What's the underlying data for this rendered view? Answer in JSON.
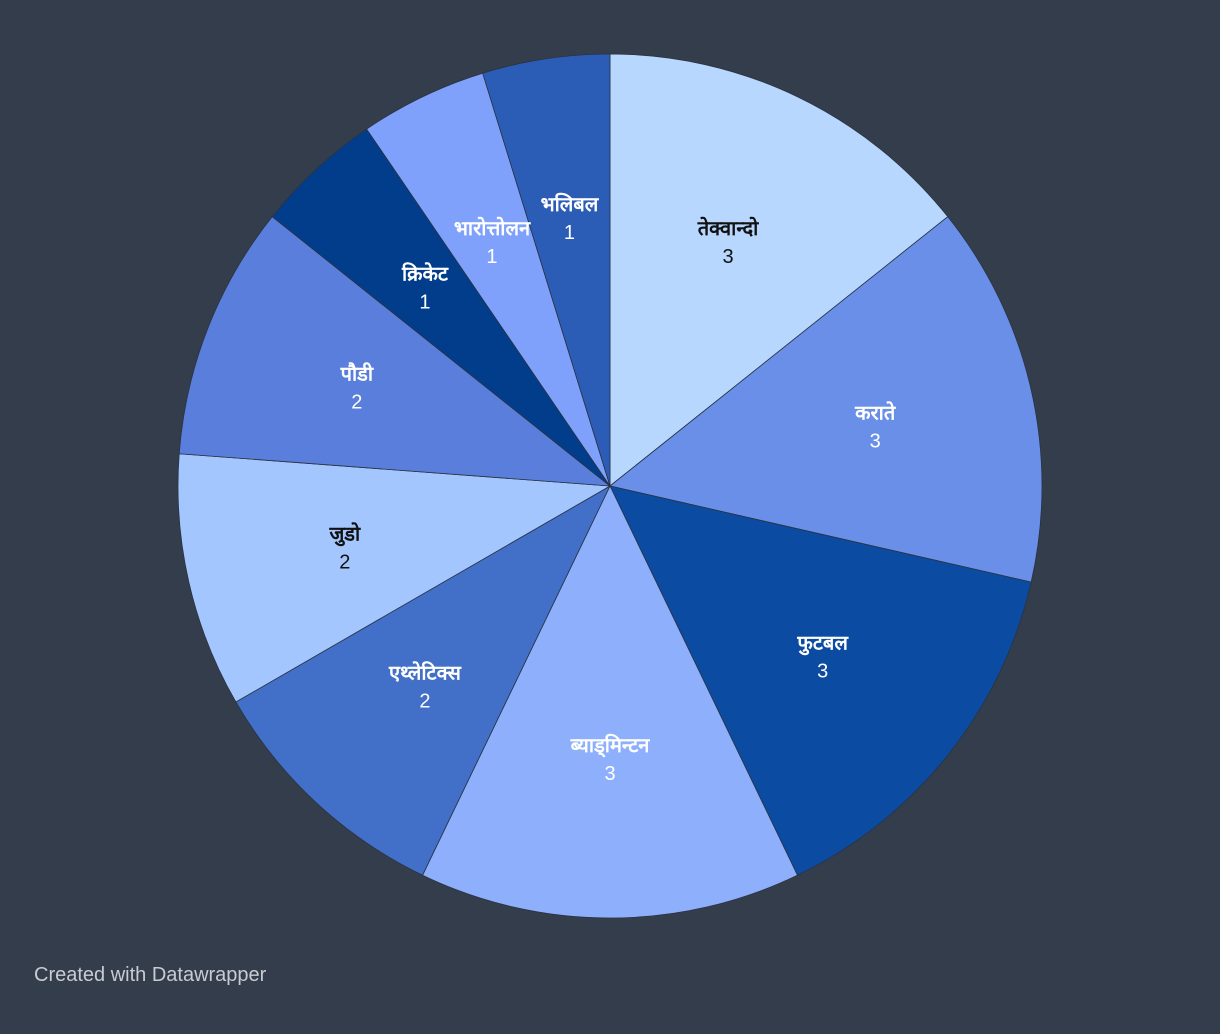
{
  "chart_data": {
    "type": "pie",
    "title": "",
    "categories": [
      "तेक्वान्दो",
      "कराते",
      "फुटबल",
      "ब्याड्मिन्टन",
      "एथ्लेटिक्स",
      "जुडो",
      "पौडी",
      "क्रिकेट",
      "भारोत्तोलन",
      "भलिबल"
    ],
    "values": [
      3,
      3,
      3,
      3,
      2,
      2,
      2,
      1,
      1,
      1
    ],
    "colors": [
      "#b7d7fe",
      "#6a8fe9",
      "#0b4ba1",
      "#8eaffc",
      "#426fc8",
      "#a4c6fe",
      "#5a7edb",
      "#023d8b",
      "#7fa1fc",
      "#2c5db6"
    ],
    "start": "top",
    "direction": "clockwise"
  },
  "background": "#343d4c",
  "credit": "Created with Datawrapper"
}
